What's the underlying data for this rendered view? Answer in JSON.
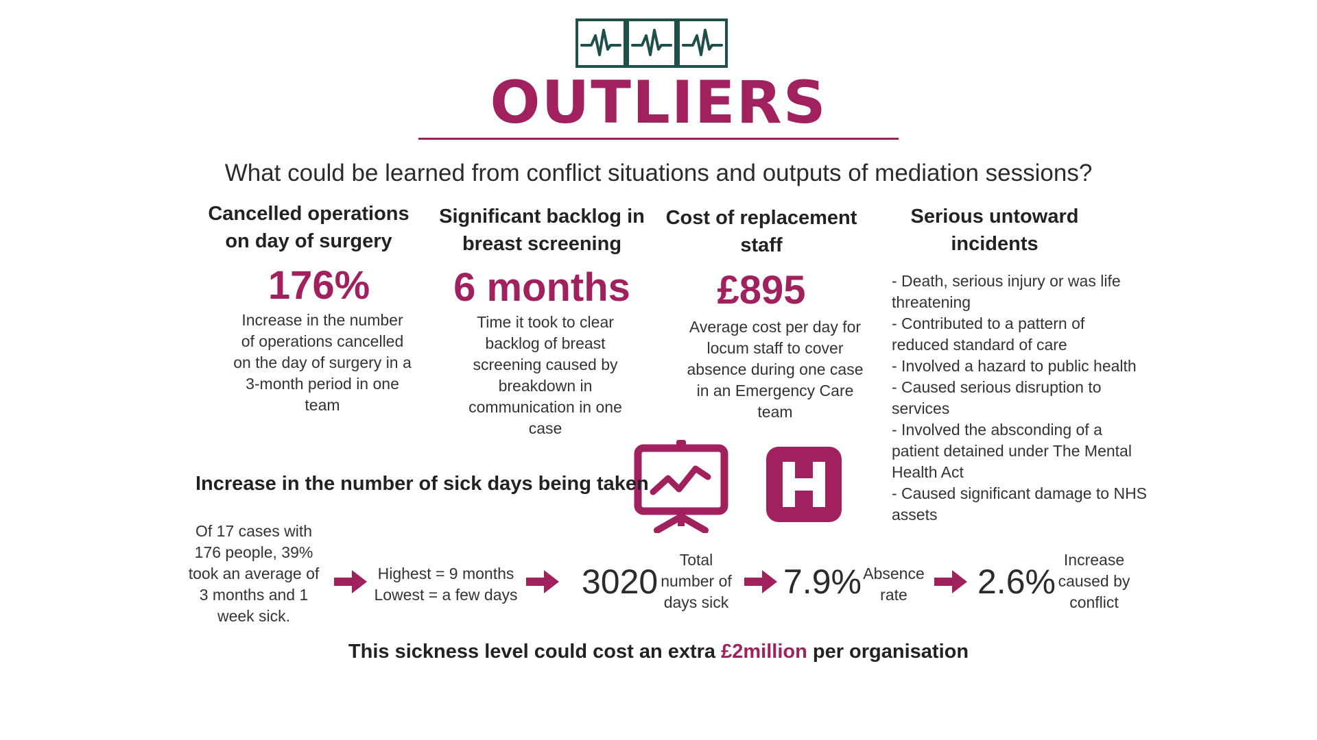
{
  "header": {
    "title": "OUTLIERS",
    "question": "What could be learned from conflict situations and outputs of mediation sessions?"
  },
  "columns": [
    {
      "heading": [
        "Cancelled operations",
        "on day of surgery"
      ],
      "big": "176%",
      "desc": [
        "Increase in the number",
        "of operations cancelled",
        "on the day of surgery in a",
        "3-month period in one",
        "team"
      ]
    },
    {
      "heading": [
        "Significant backlog in",
        "breast screening"
      ],
      "big": "6 months",
      "desc": [
        "Time it took to clear",
        "backlog of breast",
        "screening caused by",
        "breakdown in",
        "communication in one",
        "case"
      ]
    },
    {
      "heading": [
        "Cost of replacement",
        "staff"
      ],
      "big": "£895",
      "desc": [
        "Average cost per day for",
        "locum staff to cover",
        "absence during one case",
        "in an Emergency Care",
        "team"
      ]
    }
  ],
  "incidents": {
    "heading": [
      "Serious untoward",
      "incidents"
    ],
    "lines": [
      "-  Death, serious injury or was life",
      "threatening",
      "-  Contributed to a pattern of",
      "reduced standard of care",
      "-  Involved a hazard to public health",
      "-  Caused serious disruption to",
      "services",
      "-  Involved the absconding of a",
      "patient detained under The Mental",
      "Health Act",
      "-  Caused significant damage to NHS",
      "assets"
    ]
  },
  "sick": {
    "title": "Increase in the number of sick days being taken",
    "cases": [
      "Of 17 cases with",
      "176 people, 39%",
      "took an average of",
      "3 months and 1",
      "week sick."
    ],
    "range": [
      "Highest = 9 months",
      "Lowest = a few days"
    ],
    "total_num": "3020",
    "total_label": [
      "Total",
      "number of",
      "days sick"
    ],
    "absence_num": "7.9%",
    "absence_label": [
      "Absence",
      "rate"
    ],
    "conflict_num": "2.6%",
    "conflict_label": [
      "Increase",
      "caused by",
      "conflict"
    ]
  },
  "footer": {
    "before": "This sickness level could cost an extra ",
    "highlight": "£2million",
    "after": " per organisation"
  },
  "colors": {
    "accent": "#a0215e",
    "logo": "#1e4f4a"
  },
  "icons": [
    "heartbeat-icon",
    "presentation-chart-icon",
    "hospital-icon",
    "arrow-right-icon"
  ]
}
